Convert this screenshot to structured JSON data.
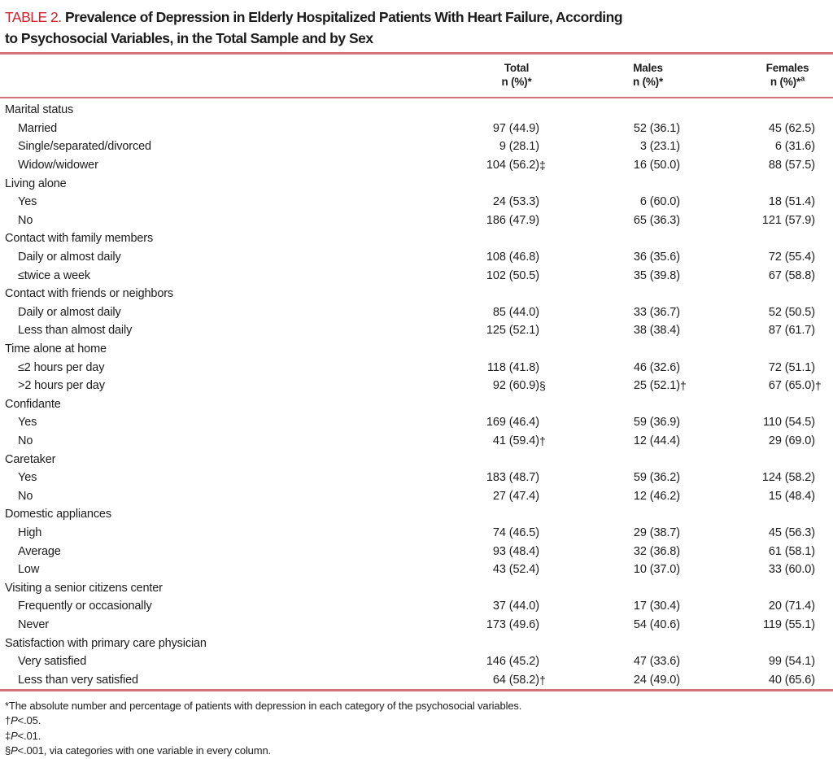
{
  "colors": {
    "accent_red": "#cf2127",
    "rule_pink": "#d4737a",
    "text": "#1c1c1c"
  },
  "title": {
    "label": "TABLE 2.",
    "line1_rest": "Prevalence of Depression in Elderly Hospitalized Patients With Heart Failure, According",
    "line2": "to Psychosocial Variables, in the Total Sample and by Sex"
  },
  "header": {
    "columns": [
      {
        "name": "Total",
        "sub": "n (%)*",
        "sup": ""
      },
      {
        "name": "Males",
        "sub": "n (%)*",
        "sup": ""
      },
      {
        "name": "Females",
        "sub": "n (%)*",
        "sup": "a"
      }
    ]
  },
  "table": {
    "rows": [
      {
        "label": "Marital status",
        "group": true
      },
      {
        "label": "Married",
        "t": "97 (44.9)",
        "tm": "",
        "m": "52 (36.1)",
        "mm": "",
        "f": "45 (62.5)",
        "fm": ""
      },
      {
        "label": "Single/separated/divorced",
        "t": "9 (28.1)",
        "tm": "",
        "m": "3 (23.1)",
        "mm": "",
        "f": "6 (31.6)",
        "fm": ""
      },
      {
        "label": "Widow/widower",
        "t": "104 (56.2)",
        "tm": "‡",
        "m": "16 (50.0)",
        "mm": "",
        "f": "88 (57.5)",
        "fm": ""
      },
      {
        "label": "Living alone",
        "group": true
      },
      {
        "label": "Yes",
        "t": "24 (53.3)",
        "tm": "",
        "m": "6 (60.0)",
        "mm": "",
        "f": "18 (51.4)",
        "fm": ""
      },
      {
        "label": "No",
        "t": "186 (47.9)",
        "tm": "",
        "m": "65 (36.3)",
        "mm": "",
        "f": "121 (57.9)",
        "fm": ""
      },
      {
        "label": "Contact with family members",
        "group": true
      },
      {
        "label": "Daily or almost daily",
        "t": "108 (46.8)",
        "tm": "",
        "m": "36 (35.6)",
        "mm": "",
        "f": "72 (55.4)",
        "fm": ""
      },
      {
        "label": "≤twice a week",
        "t": "102 (50.5)",
        "tm": "",
        "m": "35 (39.8)",
        "mm": "",
        "f": "67 (58.8)",
        "fm": ""
      },
      {
        "label": "Contact with friends or neighbors",
        "group": true
      },
      {
        "label": "Daily or almost daily",
        "t": "85 (44.0)",
        "tm": "",
        "m": "33 (36.7)",
        "mm": "",
        "f": "52 (50.5)",
        "fm": ""
      },
      {
        "label": "Less than almost daily",
        "t": "125 (52.1)",
        "tm": "",
        "m": "38 (38.4)",
        "mm": "",
        "f": "87 (61.7)",
        "fm": ""
      },
      {
        "label": "Time alone at home",
        "group": true
      },
      {
        "label": "≤2 hours per day",
        "t": "118 (41.8)",
        "tm": "",
        "m": "46 (32.6)",
        "mm": "",
        "f": "72 (51.1)",
        "fm": ""
      },
      {
        "label": ">2 hours per day",
        "t": "92 (60.9)",
        "tm": "§",
        "m": "25 (52.1)",
        "mm": "†",
        "f": "67 (65.0)",
        "fm": "†"
      },
      {
        "label": "Confidante",
        "group": true
      },
      {
        "label": "Yes",
        "t": "169 (46.4)",
        "tm": "",
        "m": "59 (36.9)",
        "mm": "",
        "f": "110 (54.5)",
        "fm": ""
      },
      {
        "label": "No",
        "t": "41 (59.4)",
        "tm": "†",
        "m": "12 (44.4)",
        "mm": "",
        "f": "29 (69.0)",
        "fm": ""
      },
      {
        "label": "Caretaker",
        "group": true
      },
      {
        "label": "Yes",
        "t": "183 (48.7)",
        "tm": "",
        "m": "59 (36.2)",
        "mm": "",
        "f": "124 (58.2)",
        "fm": ""
      },
      {
        "label": "No",
        "t": "27 (47.4)",
        "tm": "",
        "m": "12 (46.2)",
        "mm": "",
        "f": "15 (48.4)",
        "fm": ""
      },
      {
        "label": "Domestic appliances",
        "group": true
      },
      {
        "label": "High",
        "t": "74 (46.5)",
        "tm": "",
        "m": "29 (38.7)",
        "mm": "",
        "f": "45 (56.3)",
        "fm": ""
      },
      {
        "label": "Average",
        "t": "93 (48.4)",
        "tm": "",
        "m": "32 (36.8)",
        "mm": "",
        "f": "61 (58.1)",
        "fm": ""
      },
      {
        "label": "Low",
        "t": "43 (52.4)",
        "tm": "",
        "m": "10 (37.0)",
        "mm": "",
        "f": "33 (60.0)",
        "fm": ""
      },
      {
        "label": "Visiting a senior citizens center",
        "group": true
      },
      {
        "label": "Frequently or occasionally",
        "t": "37 (44.0)",
        "tm": "",
        "m": "17 (30.4)",
        "mm": "",
        "f": "20 (71.4)",
        "fm": ""
      },
      {
        "label": "Never",
        "t": "173 (49.6)",
        "tm": "",
        "m": "54 (40.6)",
        "mm": "",
        "f": "119 (55.1)",
        "fm": ""
      },
      {
        "label": "Satisfaction with primary care physician",
        "group": true
      },
      {
        "label": "Very satisfied",
        "t": "146 (45.2)",
        "tm": "",
        "m": "47 (33.6)",
        "mm": "",
        "f": "99 (54.1)",
        "fm": ""
      },
      {
        "label": "Less than very satisfied",
        "t": "64 (58.2)",
        "tm": "†",
        "m": "24 (49.0)",
        "mm": "",
        "f": "40 (65.6)",
        "fm": ""
      }
    ]
  },
  "footnotes": [
    {
      "marker": "*",
      "italic": "",
      "text": "The absolute number and percentage of patients with depression in each category of the psychosocial variables."
    },
    {
      "marker": "†",
      "italic": "P",
      "text": "<.05."
    },
    {
      "marker": "‡",
      "italic": "P",
      "text": "<.01."
    },
    {
      "marker": "§",
      "italic": "P",
      "text": "<.001, via categories with one variable in every column."
    }
  ]
}
